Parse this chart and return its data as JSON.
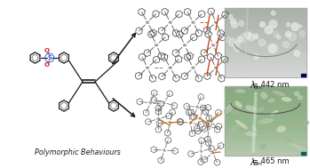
{
  "background_color": "#ffffff",
  "lambda1": "λₑₘ = 442 nm",
  "lambda2": "λₑₘ = 465 nm",
  "label": "Polymorphic Behaviours",
  "ring_color": "#1a1a1a",
  "s_color": "#1a1a1a",
  "o_color": "#cc2222",
  "bond_lw": 0.9,
  "ring_r": 0.033,
  "photo1_colors": [
    "#d8e0d8",
    "#c0c8c0",
    "#e8ecec",
    "#b8c0b8"
  ],
  "photo2_colors": [
    "#b8d0b8",
    "#98b898",
    "#d0e8d0",
    "#a0c0a0"
  ],
  "crystal1_mol_color": "#555555",
  "crystal1_hi_color": "#cc4400",
  "crystal2_mol_color": "#666666",
  "crystal2_hi_color": "#cc6600"
}
